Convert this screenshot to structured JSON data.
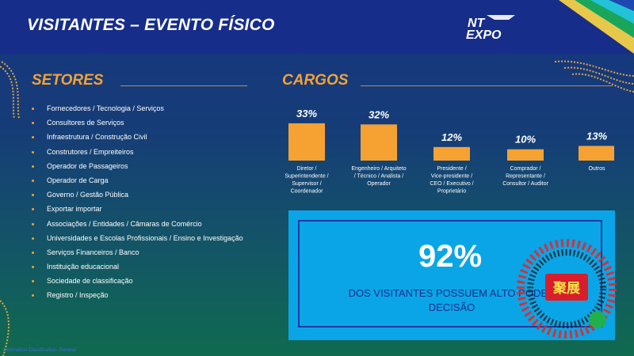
{
  "title": "VISITANTES – EVENTO FÍSICO",
  "logo": {
    "line1": "NT",
    "line2": "EXPO"
  },
  "sectors": {
    "heading": "SETORES",
    "items": [
      "Fornecedores / Tecnologia / Serviços",
      "Consultores de Serviços",
      "Infraestrutura / Construção Civil",
      "Construtores / Empreiteiros",
      "Operador de Passageiros",
      "Operador de Carga",
      "Governo / Gestão Pública",
      "Exportar importar",
      "Associações / Entidades / Câmaras de Comércio",
      "Universidades e Escolas Profissionais / Ensino e Investigação",
      "Serviços Financeiros / Banco",
      "Instituição educacional",
      "Sociedade de classificação",
      " Registro / Inspeção"
    ]
  },
  "cargos": {
    "heading": "CARGOS"
  },
  "chart_data": {
    "type": "bar",
    "title": "CARGOS",
    "categories": [
      [
        "Diretor /",
        "Superintendente /",
        "Supervisor /",
        "Coordenador"
      ],
      [
        "Engenheiro / Arquiteto",
        "/ Técnico / Analista /",
        "Operador"
      ],
      [
        "Presidente /",
        "Vice-presidente /",
        "CEO / Executivo /",
        "Proprietário"
      ],
      [
        "Comprador /",
        "Representante /",
        "Consultor / Auditor"
      ],
      [
        "Outros"
      ]
    ],
    "values": [
      33,
      32,
      12,
      10,
      13
    ],
    "data_labels": [
      "33%",
      "32%",
      "12%",
      "10%",
      "13%"
    ],
    "unit": "%",
    "ylim": [
      0,
      35
    ],
    "bar_color": "#f5a233",
    "grid": false,
    "legend": false
  },
  "highlight": {
    "value": "92%",
    "text_line1": "DOS VISITANTES POSSUEM ALTO PODER",
    "text_line2": "DECISÃO"
  },
  "watermark": {
    "text": "聚展"
  },
  "footer": "Information Classification: General",
  "colors": {
    "accent": "#f5a233",
    "header": "#172d8a",
    "highlight_bg": "#0aa5e6",
    "highlight_text": "#142f8c"
  }
}
